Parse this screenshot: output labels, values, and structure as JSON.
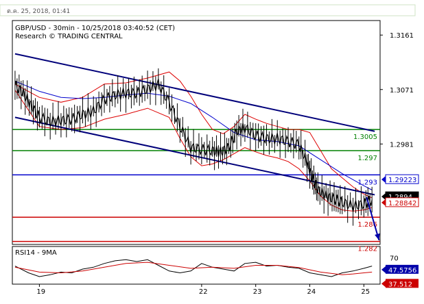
{
  "header": {
    "datetime": "ต.ค. 25, 2018, 01:41"
  },
  "chart_data": [
    {
      "type": "line",
      "title": "GBP/USD - 30min - 10/25/2018 03:40:52 (CET)",
      "subtitle": "Research © TRADING CENTRAL",
      "ylim": [
        1.2815,
        1.3185
      ],
      "xlim": [
        18.5,
        25.3
      ],
      "x_ticks": [
        "19",
        "22",
        "23",
        "24",
        "25"
      ],
      "y_ticks": [
        {
          "label": "1.3161",
          "value": 1.3161
        },
        {
          "label": "1.3071",
          "value": 1.3071
        },
        {
          "label": "1.2981",
          "value": 1.2981
        }
      ],
      "price_series": {
        "name": "GBP/USD",
        "x": [
          18.55,
          18.7,
          18.85,
          19.0,
          19.2,
          19.4,
          19.6,
          19.8,
          20.0,
          20.2,
          20.4,
          20.6,
          20.8,
          21.0,
          21.2,
          21.4,
          21.6,
          21.8,
          22.0,
          22.2,
          22.35,
          22.5,
          22.65,
          22.8,
          23.0,
          23.2,
          23.4,
          23.6,
          23.8,
          23.95,
          24.05,
          24.15,
          24.3,
          24.45,
          24.6,
          24.8,
          25.0,
          25.15
        ],
        "y": [
          1.3078,
          1.3065,
          1.3045,
          1.3025,
          1.3018,
          1.302,
          1.3022,
          1.303,
          1.3035,
          1.3055,
          1.3062,
          1.3065,
          1.3065,
          1.3072,
          1.308,
          1.305,
          1.301,
          1.2975,
          1.2972,
          1.297,
          1.2968,
          1.2975,
          1.3002,
          1.3008,
          1.2995,
          1.299,
          1.299,
          1.2985,
          1.298,
          1.295,
          1.2925,
          1.2905,
          1.2895,
          1.289,
          1.2885,
          1.2878,
          1.2882,
          1.2889
        ]
      },
      "bands": {
        "upper": {
          "x": [
            18.55,
            19.0,
            19.4,
            19.8,
            20.2,
            20.6,
            21.0,
            21.4,
            21.6,
            21.8,
            22.0,
            22.2,
            22.4,
            22.6,
            22.8,
            23.0,
            23.2,
            23.4,
            23.6,
            23.8,
            24.0,
            24.2,
            24.4,
            24.6,
            24.8,
            25.0,
            25.15
          ],
          "y": [
            1.308,
            1.3058,
            1.305,
            1.3058,
            1.308,
            1.3082,
            1.309,
            1.31,
            1.3085,
            1.306,
            1.303,
            1.3005,
            1.2998,
            1.301,
            1.303,
            1.3022,
            1.3015,
            1.301,
            1.3005,
            1.3005,
            1.3,
            1.297,
            1.294,
            1.2925,
            1.291,
            1.2898,
            1.2892
          ]
        },
        "lower": {
          "x": [
            18.55,
            19.0,
            19.4,
            19.8,
            20.2,
            20.6,
            21.0,
            21.4,
            21.6,
            21.8,
            22.0,
            22.2,
            22.4,
            22.6,
            22.8,
            23.0,
            23.2,
            23.4,
            23.6,
            23.8,
            24.0,
            24.2,
            24.4,
            24.6,
            24.8,
            25.0,
            25.15
          ],
          "y": [
            1.307,
            1.301,
            1.3005,
            1.3008,
            1.3022,
            1.303,
            1.304,
            1.3025,
            1.299,
            1.296,
            1.2945,
            1.2948,
            1.2955,
            1.2965,
            1.2975,
            1.2968,
            1.2962,
            1.2958,
            1.2952,
            1.294,
            1.292,
            1.2895,
            1.288,
            1.2872,
            1.287,
            1.2872,
            1.2876
          ]
        },
        "ma": {
          "x": [
            18.55,
            19.0,
            19.4,
            19.8,
            20.2,
            20.6,
            21.0,
            21.4,
            21.8,
            22.2,
            22.6,
            23.0,
            23.4,
            23.8,
            24.2,
            24.6,
            24.8,
            25.0,
            25.15
          ],
          "y": [
            1.3085,
            1.3068,
            1.3058,
            1.3056,
            1.3058,
            1.3062,
            1.3065,
            1.306,
            1.3048,
            1.3025,
            1.3,
            1.2988,
            1.2985,
            1.2978,
            1.2955,
            1.2932,
            1.2922,
            1.2912,
            1.2905
          ]
        }
      },
      "channel_lines": [
        {
          "x": [
            18.55,
            25.2
          ],
          "y": [
            1.313,
            1.3002
          ]
        },
        {
          "x": [
            18.55,
            25.2
          ],
          "y": [
            1.3025,
            1.2897
          ]
        }
      ],
      "levels": [
        {
          "label": "1.3005",
          "value": 1.3005,
          "color": "#008000"
        },
        {
          "label": "1.297",
          "value": 1.297,
          "color": "#008000"
        },
        {
          "label": "1.293",
          "value": 1.293,
          "color": "#0000cc"
        },
        {
          "label": "1.286",
          "value": 1.286,
          "color": "#cc0000"
        },
        {
          "label": "1.282",
          "value": 1.282,
          "color": "#cc0000"
        }
      ],
      "projection": {
        "x": [
          25.05,
          25.28
        ],
        "y": [
          1.2893,
          1.2822
        ],
        "color": "#0000aa"
      },
      "price_flags": [
        {
          "label": "1.29223",
          "value": 1.29223,
          "color": "#0000cc"
        },
        {
          "label": "1.2894",
          "value": 1.2894,
          "color": "#000000"
        },
        {
          "label": "1.28842",
          "value": 1.28842,
          "color": "#cc0000"
        }
      ]
    },
    {
      "type": "line",
      "title": "RSI14 - 9MA",
      "ylim": [
        0,
        100
      ],
      "y_ticks": [
        {
          "label": "70",
          "value": 70
        }
      ],
      "series": [
        {
          "color": "#000000",
          "x": [
            18.55,
            18.8,
            19.0,
            19.2,
            19.4,
            19.6,
            19.8,
            20.0,
            20.2,
            20.4,
            20.6,
            20.8,
            21.0,
            21.2,
            21.4,
            21.6,
            21.8,
            22.0,
            22.2,
            22.4,
            22.6,
            22.8,
            23.0,
            23.2,
            23.4,
            23.6,
            23.8,
            24.0,
            24.2,
            24.4,
            24.6,
            24.8,
            25.0,
            25.15
          ],
          "y": [
            48,
            30,
            20,
            25,
            32,
            30,
            40,
            45,
            55,
            62,
            65,
            60,
            65,
            50,
            35,
            30,
            35,
            55,
            45,
            40,
            35,
            55,
            58,
            48,
            50,
            45,
            42,
            30,
            25,
            20,
            30,
            35,
            42,
            48
          ]
        },
        {
          "color": "#cc0000",
          "x": [
            18.55,
            19.0,
            19.4,
            19.8,
            20.2,
            20.6,
            21.0,
            21.4,
            21.8,
            22.2,
            22.6,
            23.0,
            23.4,
            23.8,
            24.2,
            24.6,
            24.8,
            25.0,
            25.15
          ],
          "y": [
            45,
            32,
            30,
            35,
            45,
            55,
            58,
            50,
            42,
            45,
            42,
            50,
            50,
            44,
            32,
            25,
            27,
            30,
            32
          ]
        }
      ],
      "value_flags": [
        {
          "label": "47.5756",
          "value": 47.5756,
          "color": "#0000aa"
        },
        {
          "label": "37.512",
          "value": 37.512,
          "color": "#cc0000"
        }
      ]
    }
  ]
}
